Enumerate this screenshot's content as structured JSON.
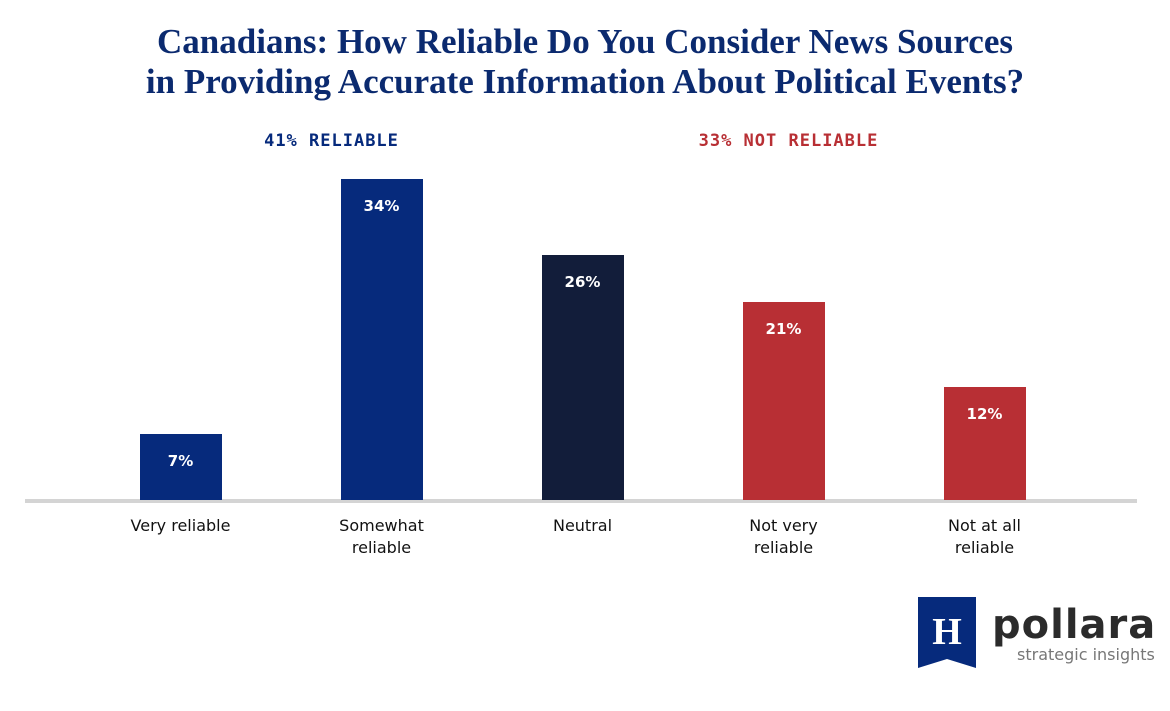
{
  "chart_data": {
    "type": "bar",
    "title": "Canadians: How Reliable Do You Consider News Sources",
    "subtitle": "in Providing Accurate Information About Political Events?",
    "categories": [
      "Very reliable",
      "Somewhat reliable",
      "Neutral",
      "Not very reliable",
      "Not at all reliable"
    ],
    "values": [
      7,
      34,
      26,
      21,
      12
    ],
    "value_labels": [
      "7%",
      "34%",
      "26%",
      "21%",
      "12%"
    ],
    "colors": [
      "#062a7c",
      "#062a7c",
      "#121d3a",
      "#b82f34",
      "#b82f34"
    ],
    "annotations": [
      {
        "text": "41% RELIABLE",
        "color": "#062a7c"
      },
      {
        "text": "33% NOT RELIABLE",
        "color": "#b82f34"
      }
    ]
  },
  "logo": {
    "mark": "H",
    "name": "pollara",
    "tagline": "strategic insights"
  }
}
